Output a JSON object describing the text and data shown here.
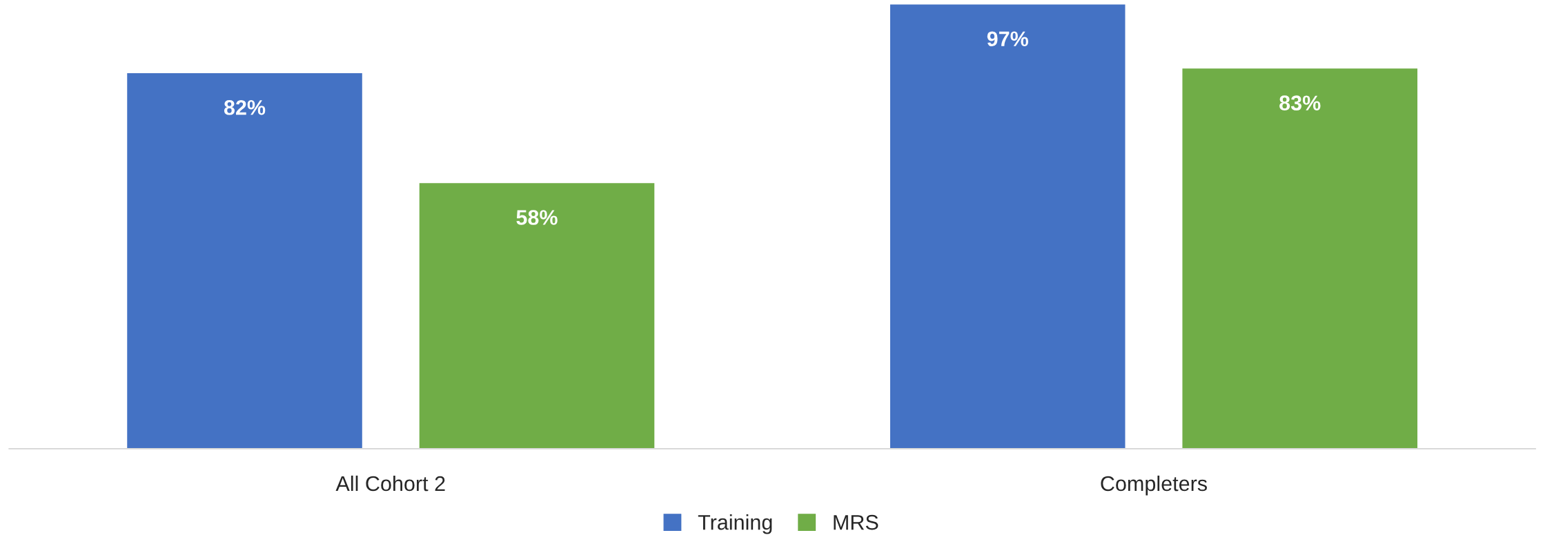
{
  "chart_data": {
    "type": "bar",
    "categories": [
      "All Cohort 2",
      "Completers"
    ],
    "series": [
      {
        "name": "Training",
        "color": "#4472c4",
        "values": [
          82,
          97
        ],
        "value_labels": [
          "82%",
          "97%"
        ]
      },
      {
        "name": "MRS",
        "color": "#70ad47",
        "values": [
          58,
          83
        ],
        "value_labels": [
          "58%",
          "83%"
        ]
      }
    ],
    "tick_labels": "x",
    "grid": false,
    "legend": "bottom"
  }
}
